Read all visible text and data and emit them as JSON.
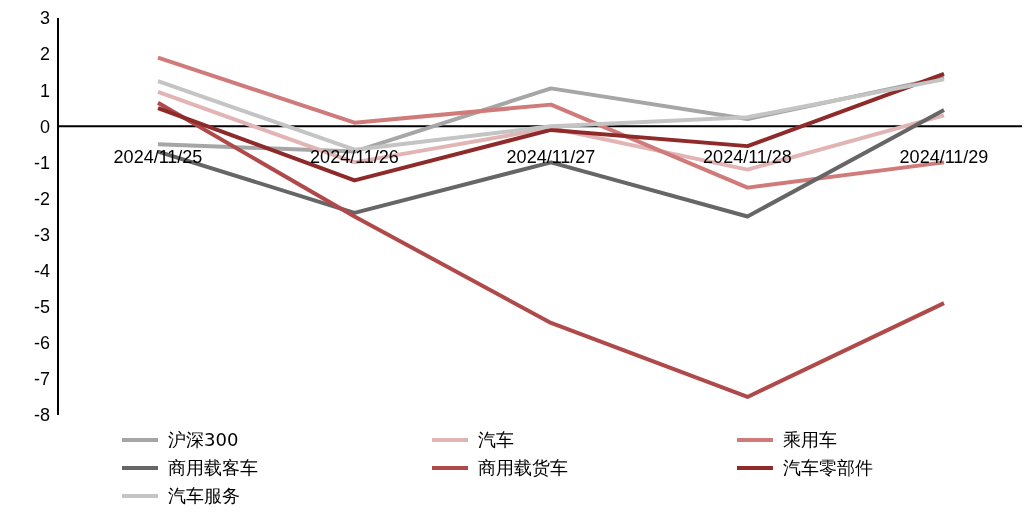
{
  "chart_data": {
    "type": "line",
    "categories": [
      "2024/11/25",
      "2024/11/26",
      "2024/11/27",
      "2024/11/28",
      "2024/11/29"
    ],
    "series": [
      {
        "name": "沪深300",
        "color": "#a6a6a6",
        "values": [
          -0.5,
          -0.7,
          1.05,
          0.2,
          1.35
        ]
      },
      {
        "name": "汽车",
        "color": "#e2b4b4",
        "values": [
          0.95,
          -1.0,
          -0.05,
          -1.2,
          0.3
        ]
      },
      {
        "name": "乘用车",
        "color": "#d07a7a",
        "values": [
          1.9,
          0.1,
          0.6,
          -1.7,
          -1.0
        ]
      },
      {
        "name": "商用载客车",
        "color": "#666666",
        "values": [
          -0.7,
          -2.4,
          -1.0,
          -2.5,
          0.45
        ]
      },
      {
        "name": "商用载货车",
        "color": "#b04a4a",
        "values": [
          0.65,
          -2.5,
          -5.45,
          -7.5,
          -4.9
        ]
      },
      {
        "name": "汽车零部件",
        "color": "#8e2a2a",
        "values": [
          0.5,
          -1.5,
          -0.1,
          -0.55,
          1.45
        ]
      },
      {
        "name": "汽车服务",
        "color": "#c4c4c4",
        "values": [
          1.25,
          -0.65,
          0.0,
          0.25,
          1.3
        ]
      }
    ],
    "ylim": [
      -8,
      3
    ],
    "yticks": [
      -8,
      -7,
      -6,
      -5,
      -4,
      -3,
      -2,
      -1,
      0,
      1,
      2,
      3
    ],
    "grid": false,
    "legend": "bottom",
    "marker": "none",
    "line_style": "solid"
  }
}
